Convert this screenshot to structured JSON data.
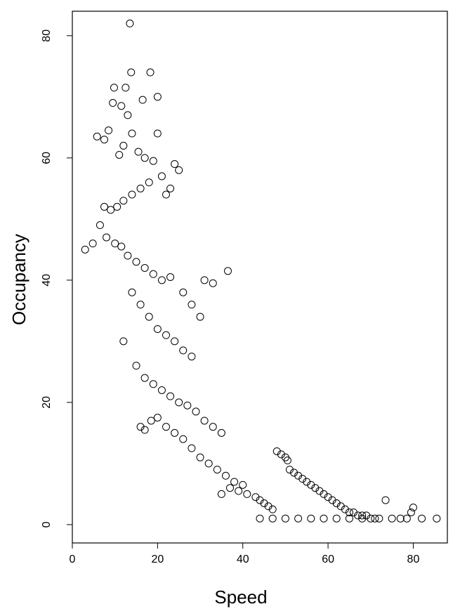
{
  "chart_data": {
    "type": "scatter",
    "title": "",
    "xlabel": "Speed",
    "ylabel": "Occupancy",
    "xlim": [
      0,
      88
    ],
    "ylim": [
      -3,
      84
    ],
    "xticks": [
      0,
      20,
      40,
      60,
      80
    ],
    "yticks": [
      0,
      20,
      40,
      60,
      80
    ],
    "xtick_labels": [
      "0",
      "20",
      "40",
      "60",
      "80"
    ],
    "ytick_labels": [
      "0",
      "20",
      "40",
      "60",
      "80"
    ],
    "grid": false,
    "legend": "none",
    "marker": "open-circle",
    "point_color": "#000000",
    "series": [
      {
        "x": [
          13.5,
          13.8,
          18.3,
          9.8,
          12.5,
          16.5,
          20.0,
          13.0,
          11.5,
          9.5,
          20.0,
          14.0,
          5.8,
          7.5,
          8.5,
          12.0,
          11.0,
          15.5,
          17.0,
          19.0,
          21.0,
          24.0,
          25.0,
          23.0,
          22.0,
          18.0,
          16.0,
          14.0,
          12.0,
          10.5,
          9.0,
          7.5,
          6.5,
          3.0,
          4.8,
          8.0,
          10.0,
          11.5,
          13.0,
          15.0,
          17.0,
          19.0,
          21.0,
          23.0,
          26.0,
          28.0,
          30.0,
          31.0,
          33.0,
          36.5,
          14.0,
          16.0,
          18.0,
          20.0,
          22.0,
          24.0,
          26.0,
          28.0,
          12.0,
          15.0,
          17.0,
          19.0,
          21.0,
          23.0,
          25.0,
          27.0,
          29.0,
          31.0,
          33.0,
          35.0,
          16.0,
          17.0,
          18.5,
          20.0,
          22.0,
          24.0,
          26.0,
          28.0,
          30.0,
          32.0,
          34.0,
          36.0,
          38.0,
          40.0,
          35.0,
          37.0,
          39.0,
          41.0,
          43.0,
          44.0,
          45.0,
          46.0,
          47.0,
          48.0,
          49.0,
          50.0,
          50.5,
          51.0,
          52.0,
          53.0,
          54.0,
          55.0,
          56.0,
          57.0,
          58.0,
          59.0,
          60.0,
          61.0,
          62.0,
          63.0,
          64.0,
          65.0,
          66.0,
          67.0,
          68.0,
          69.0,
          70.0,
          71.0,
          72.0,
          73.5,
          75.0,
          77.0,
          78.5,
          79.5,
          80.0,
          82.0,
          85.5,
          44.0,
          47.0,
          50.0,
          53.0,
          56.0,
          59.0,
          62.0,
          65.0,
          68.0
        ],
        "y": [
          82.0,
          74.0,
          74.0,
          71.5,
          71.5,
          69.5,
          70.0,
          67.0,
          68.5,
          69.0,
          64.0,
          64.0,
          63.5,
          63.0,
          64.5,
          62.0,
          60.5,
          61.0,
          60.0,
          59.5,
          57.0,
          59.0,
          58.0,
          55.0,
          54.0,
          56.0,
          55.0,
          54.0,
          53.0,
          52.0,
          51.5,
          52.0,
          49.0,
          45.0,
          46.0,
          47.0,
          46.0,
          45.5,
          44.0,
          43.0,
          42.0,
          41.0,
          40.0,
          40.5,
          38.0,
          36.0,
          34.0,
          40.0,
          39.5,
          41.5,
          38.0,
          36.0,
          34.0,
          32.0,
          31.0,
          30.0,
          28.5,
          27.5,
          30.0,
          26.0,
          24.0,
          23.0,
          22.0,
          21.0,
          20.0,
          19.5,
          18.5,
          17.0,
          16.0,
          15.0,
          16.0,
          15.5,
          17.0,
          17.5,
          16.0,
          15.0,
          14.0,
          12.5,
          11.0,
          10.0,
          9.0,
          8.0,
          7.0,
          6.5,
          5.0,
          6.0,
          5.5,
          5.0,
          4.5,
          4.0,
          3.5,
          3.0,
          2.5,
          12.0,
          11.5,
          11.0,
          10.5,
          9.0,
          8.5,
          8.0,
          7.5,
          7.0,
          6.5,
          6.0,
          5.5,
          5.0,
          4.5,
          4.0,
          3.5,
          3.0,
          2.5,
          2.0,
          2.0,
          1.5,
          1.5,
          1.5,
          1.0,
          1.0,
          1.0,
          4.0,
          1.0,
          1.0,
          1.0,
          2.0,
          2.8,
          1.0,
          1.0,
          1.0,
          1.0,
          1.0,
          1.0,
          1.0,
          1.0,
          1.0,
          1.0,
          1.0
        ]
      }
    ]
  }
}
